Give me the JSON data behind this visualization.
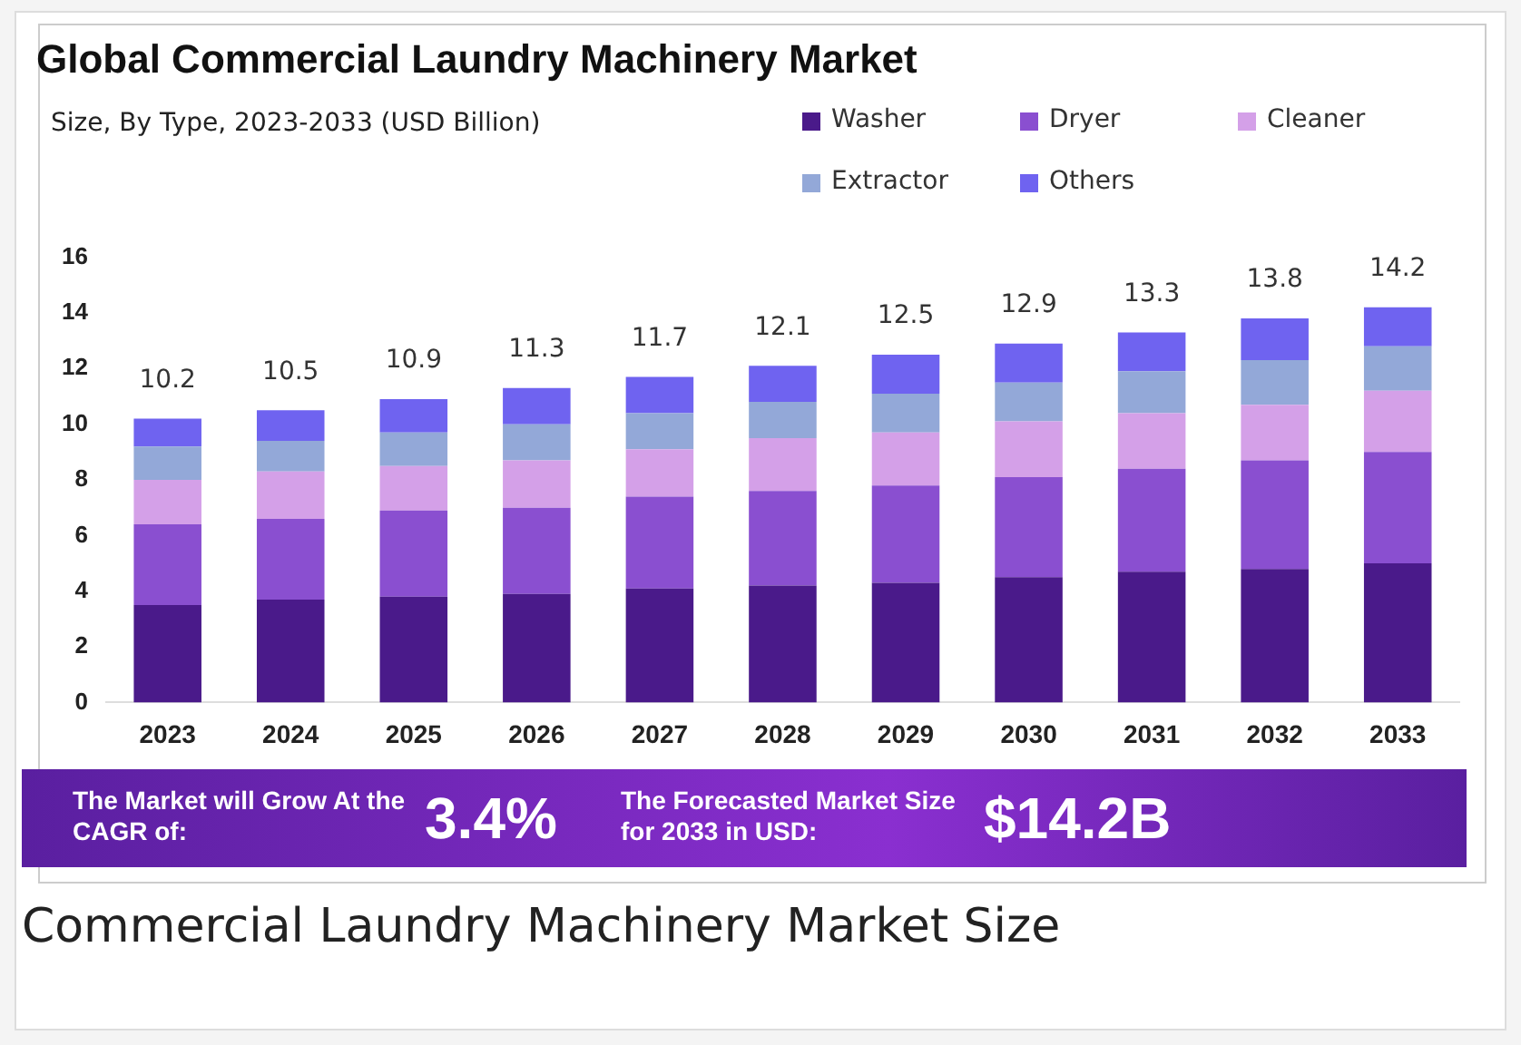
{
  "chart_data": {
    "type": "bar",
    "title": "Global Commercial Laundry Machinery Market",
    "subtitle": "Size, By Type, 2023-2033 (USD Billion)",
    "categories": [
      "2023",
      "2024",
      "2025",
      "2026",
      "2027",
      "2028",
      "2029",
      "2030",
      "2031",
      "2032",
      "2033"
    ],
    "stacked": true,
    "legend": "top right",
    "grid": false,
    "ylim": [
      0,
      16
    ],
    "yticks": [
      0,
      2,
      4,
      6,
      8,
      10,
      12,
      14,
      16
    ],
    "series": [
      {
        "name": "Washer",
        "color": "#4a1a8a",
        "values": [
          3.5,
          3.7,
          3.8,
          3.9,
          4.1,
          4.2,
          4.3,
          4.5,
          4.7,
          4.8,
          5.0
        ]
      },
      {
        "name": "Dryer",
        "color": "#8a4fd0",
        "values": [
          2.9,
          2.9,
          3.1,
          3.1,
          3.3,
          3.4,
          3.5,
          3.6,
          3.7,
          3.9,
          4.0
        ]
      },
      {
        "name": "Cleaner",
        "color": "#d4a0e8",
        "values": [
          1.6,
          1.7,
          1.6,
          1.7,
          1.7,
          1.9,
          1.9,
          2.0,
          2.0,
          2.0,
          2.2
        ]
      },
      {
        "name": "Extractor",
        "color": "#93a8d8",
        "values": [
          1.2,
          1.1,
          1.2,
          1.3,
          1.3,
          1.3,
          1.4,
          1.4,
          1.5,
          1.6,
          1.6
        ]
      },
      {
        "name": "Others",
        "color": "#6f63f0",
        "values": [
          1.0,
          1.1,
          1.2,
          1.3,
          1.3,
          1.3,
          1.4,
          1.4,
          1.4,
          1.5,
          1.4
        ]
      }
    ],
    "totals": [
      "10.2",
      "10.5",
      "10.9",
      "11.3",
      "11.7",
      "12.1",
      "12.5",
      "12.9",
      "13.3",
      "13.8",
      "14.2"
    ],
    "annotations": [
      "The Market will Grow At the CAGR of:",
      "3.4%",
      "The Forecasted Market Size for 2033 in USD:",
      "$14.2B",
      "Commercial Laundry Machinery Market Size"
    ]
  }
}
